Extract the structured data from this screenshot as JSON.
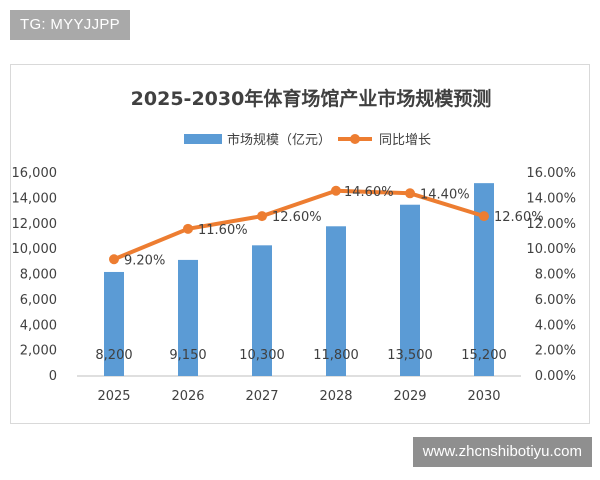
{
  "tags": {
    "top": "TG: MYYJJPP",
    "bottom": "www.zhcnshibotiyu.com"
  },
  "chart_data": {
    "type": "bar",
    "title": "2025-2030年体育场馆产业市场规模预测",
    "categories": [
      "2025",
      "2026",
      "2027",
      "2028",
      "2029",
      "2030"
    ],
    "series": [
      {
        "name": "市场规模（亿元）",
        "type": "bar",
        "axis": "left",
        "color": "#5b9bd5",
        "values": [
          8200,
          9150,
          10300,
          11800,
          13500,
          15200
        ],
        "labels": [
          "8,200",
          "9,150",
          "10,300",
          "11,800",
          "13,500",
          "15,200"
        ]
      },
      {
        "name": "同比增长",
        "type": "line",
        "axis": "right",
        "color": "#ed7d31",
        "values": [
          9.2,
          11.6,
          12.6,
          14.6,
          14.4,
          12.6
        ],
        "labels": [
          "9.20%",
          "11.60%",
          "12.60%",
          "14.60%",
          "14.40%",
          "12.60%"
        ]
      }
    ],
    "y_left": {
      "lim": [
        0,
        16000
      ],
      "ticks": [
        "0",
        "2,000",
        "4,000",
        "6,000",
        "8,000",
        "10,000",
        "12,000",
        "14,000",
        "16,000"
      ]
    },
    "y_right": {
      "lim": [
        0,
        16
      ],
      "ticks": [
        "0.00%",
        "2.00%",
        "4.00%",
        "6.00%",
        "8.00%",
        "10.00%",
        "12.00%",
        "14.00%",
        "16.00%"
      ]
    },
    "legend_position": "top-center",
    "grid": false
  }
}
